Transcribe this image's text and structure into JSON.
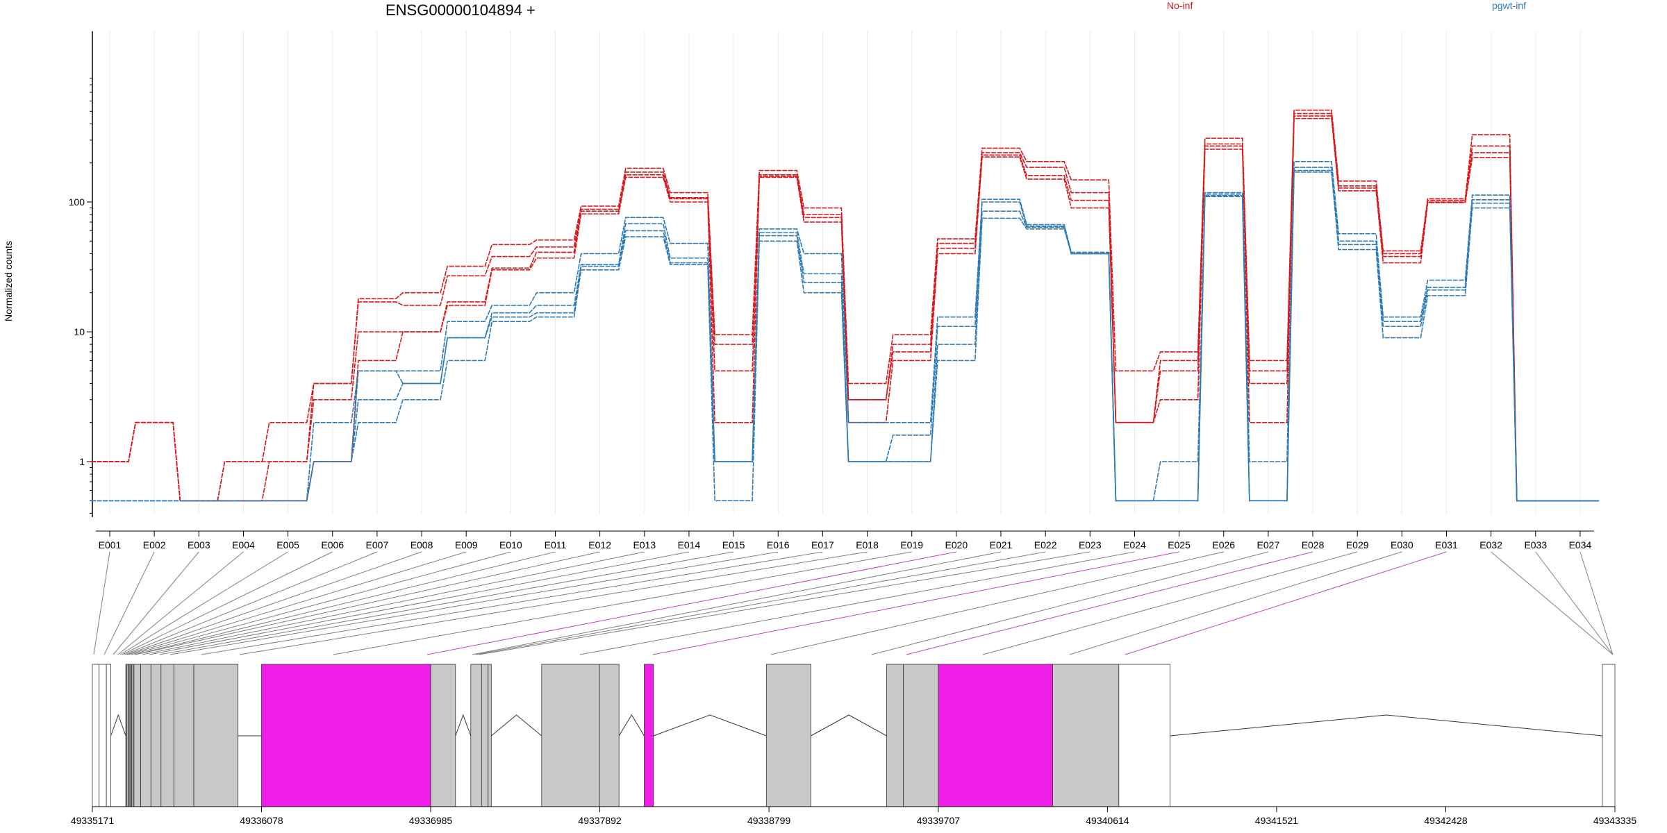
{
  "chart_data": {
    "type": "line",
    "title": "ENSG00000104894 +",
    "ylabel": "Normalized counts",
    "xlabel": "",
    "y_scale": "log",
    "y_ticks": [
      1,
      10,
      100
    ],
    "y_tick_labels": [
      "1",
      "10",
      "100"
    ],
    "categories": [
      "E001",
      "E002",
      "E003",
      "E004",
      "E005",
      "E006",
      "E007",
      "E008",
      "E009",
      "E010",
      "E011",
      "E012",
      "E013",
      "E014",
      "E015",
      "E016",
      "E017",
      "E018",
      "E019",
      "E020",
      "E021",
      "E022",
      "E023",
      "E024",
      "E025",
      "E026",
      "E027",
      "E028",
      "E029",
      "E030",
      "E031",
      "E032",
      "E033",
      "E034"
    ],
    "legend": [
      {
        "name": "No-inf",
        "color": "#d7191c"
      },
      {
        "name": "pgwt-inf",
        "color": "#2c7bb6"
      }
    ],
    "series": [
      {
        "group": "No-inf",
        "color": "#d7191c",
        "values": [
          1,
          2,
          0.5,
          1,
          1,
          4,
          18,
          20,
          32,
          47,
          51,
          93,
          182,
          118,
          9.5,
          175,
          90,
          4,
          9.5,
          52,
          260,
          205,
          148,
          5,
          7,
          310,
          6,
          510,
          145,
          42,
          106,
          330,
          0.5,
          0.5
        ]
      },
      {
        "group": "No-inf",
        "color": "#d7191c",
        "values": [
          1,
          2,
          0.5,
          1,
          2,
          4,
          17,
          16,
          27,
          38,
          45,
          88,
          170,
          108,
          8,
          162,
          80,
          3,
          8,
          48,
          240,
          185,
          118,
          2,
          6,
          280,
          5,
          480,
          133,
          40,
          103,
          270,
          0.5,
          0.5
        ]
      },
      {
        "group": "No-inf",
        "color": "#d7191c",
        "values": [
          1,
          2,
          0.5,
          0.5,
          1,
          3,
          10,
          10,
          17,
          31,
          41,
          85,
          162,
          106,
          5,
          158,
          76,
          3,
          7,
          44,
          230,
          160,
          103,
          2,
          5,
          270,
          4,
          460,
          128,
          38,
          100,
          240,
          0.5,
          0.5
        ]
      },
      {
        "group": "No-inf",
        "color": "#d7191c",
        "values": [
          1,
          2,
          0.5,
          0.5,
          0.5,
          1,
          6,
          10,
          16,
          30,
          37,
          81,
          155,
          100,
          2,
          155,
          70,
          2,
          6,
          40,
          222,
          150,
          90,
          2,
          3,
          255,
          2,
          440,
          122,
          34,
          99,
          220,
          0.5,
          0.5
        ]
      },
      {
        "group": "pgwt-inf",
        "color": "#2c7bb6",
        "values": [
          0.5,
          0.5,
          0.5,
          0.5,
          0.5,
          2,
          5,
          5,
          12,
          16,
          20,
          40,
          76,
          48,
          1,
          62,
          40,
          2,
          2,
          13,
          105,
          67,
          41,
          0.5,
          1,
          118,
          1,
          205,
          57,
          13,
          25,
          113,
          0.5,
          0.5
        ]
      },
      {
        "group": "pgwt-inf",
        "color": "#2c7bb6",
        "values": [
          0.5,
          0.5,
          0.5,
          0.5,
          0.5,
          1,
          5,
          4,
          9,
          14,
          16,
          33,
          68,
          37,
          1,
          58,
          28,
          1,
          1.6,
          11,
          100,
          65,
          40,
          0.5,
          0.5,
          115,
          0.5,
          185,
          50,
          12,
          22,
          104,
          0.5,
          0.5
        ]
      },
      {
        "group": "pgwt-inf",
        "color": "#2c7bb6",
        "values": [
          0.5,
          0.5,
          0.5,
          0.5,
          0.5,
          1,
          3,
          4,
          9,
          13,
          14,
          32,
          60,
          34,
          1,
          55,
          24,
          1,
          1,
          8,
          85,
          64,
          40,
          0.5,
          0.5,
          112,
          0.5,
          175,
          47,
          11,
          21,
          98,
          0.5,
          0.5
        ]
      },
      {
        "group": "pgwt-inf",
        "color": "#2c7bb6",
        "values": [
          0.5,
          0.5,
          0.5,
          0.5,
          0.5,
          1,
          2,
          3,
          6,
          12,
          13,
          30,
          54,
          33,
          0.5,
          50,
          20,
          1,
          1,
          6,
          75,
          62,
          40,
          0.5,
          0.5,
          110,
          0.5,
          170,
          43,
          9,
          19,
          90,
          0.5,
          0.5
        ]
      }
    ],
    "gene_model": {
      "coordinate_labels": [
        "49335171",
        "49336078",
        "49336985",
        "49337892",
        "49338799",
        "49339707",
        "49340614",
        "49341521",
        "49342428",
        "49343335"
      ],
      "highlight_color": "#f01ee6",
      "exon_color": "#c8c8c8",
      "highlighted_exons": [
        "E021",
        "E026",
        "E028",
        "E031"
      ]
    }
  }
}
